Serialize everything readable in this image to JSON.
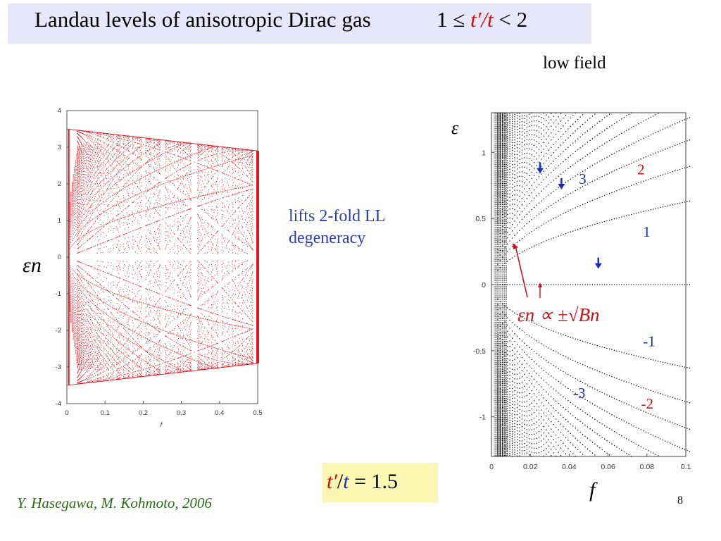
{
  "slide": {
    "title": "Landau levels of anisotropic Dirac gas",
    "title_condition": {
      "left": "1 ≤ ",
      "ratio": "t′/t",
      "right": " < 2"
    },
    "low_field_label": "low field",
    "annotation_line1": "lifts 2-fold LL",
    "annotation_line2": "degeneracy",
    "formula": {
      "t_prime": "t′",
      "slash": "/",
      "t": "t",
      "rest": " = 1.5"
    },
    "citation": "Y. Hasegawa, M. Kohmoto, 2006",
    "page_number": "8"
  },
  "colors": {
    "title_bg": "#e6e8fa",
    "formula_bg": "#fbf7b3",
    "spectrum_red": "#e8121a",
    "blue_text": "#2d3bb5",
    "citation_green": "#2f6d1a"
  },
  "chart_data": [
    {
      "type": "scatter",
      "title": "",
      "xlabel": "f",
      "ylabel": "εn",
      "xlim": [
        0,
        0.5
      ],
      "ylim": [
        -4,
        4
      ],
      "x_ticks": [
        "0",
        "0.1",
        "0.2",
        "0.3",
        "0.4",
        "0.5"
      ],
      "y_ticks": [
        "4",
        "3",
        "2",
        "1",
        "0",
        "-1",
        "-2",
        "-3",
        "-4"
      ],
      "band_edges": [
        {
          "f": 0,
          "emin": -3.5,
          "emax": 3.5
        },
        {
          "f": 0.5,
          "emin": -2.9,
          "emax": 2.9
        }
      ],
      "gap_near_zero_f": [
        0.0,
        0.5
      ],
      "description_series": "Hofstadter-like butterfly spectrum of an anisotropic Dirac gas",
      "color": "#e8121a"
    },
    {
      "type": "scatter",
      "title": "",
      "xlabel": "f",
      "ylabel": "ε",
      "xlim": [
        0,
        0.1
      ],
      "ylim": [
        -1.3,
        1.3
      ],
      "x_ticks": [
        "0",
        "0.02",
        "0.04",
        "0.06",
        "0.08",
        "0.1"
      ],
      "y_ticks": [
        "1",
        "0.5",
        "0",
        "-0.5",
        "-1"
      ],
      "landau_level_labels": [
        {
          "n": "3",
          "f": 0.045,
          "e": 0.8
        },
        {
          "n": "2",
          "f": 0.075,
          "e": 0.87
        },
        {
          "n": "1",
          "f": 0.078,
          "e": 0.4
        },
        {
          "n": "-1",
          "f": 0.078,
          "e": -0.43
        },
        {
          "n": "-2",
          "f": 0.077,
          "e": -0.9
        },
        {
          "n": "-3",
          "f": 0.042,
          "e": -0.82
        }
      ],
      "blue_arrows_f": [
        0.025,
        0.036,
        0.055
      ],
      "fit_label": "εn ∝ ±√Bn",
      "scaling": "εn ∝ ±√(n f)",
      "color": "#000000"
    }
  ]
}
